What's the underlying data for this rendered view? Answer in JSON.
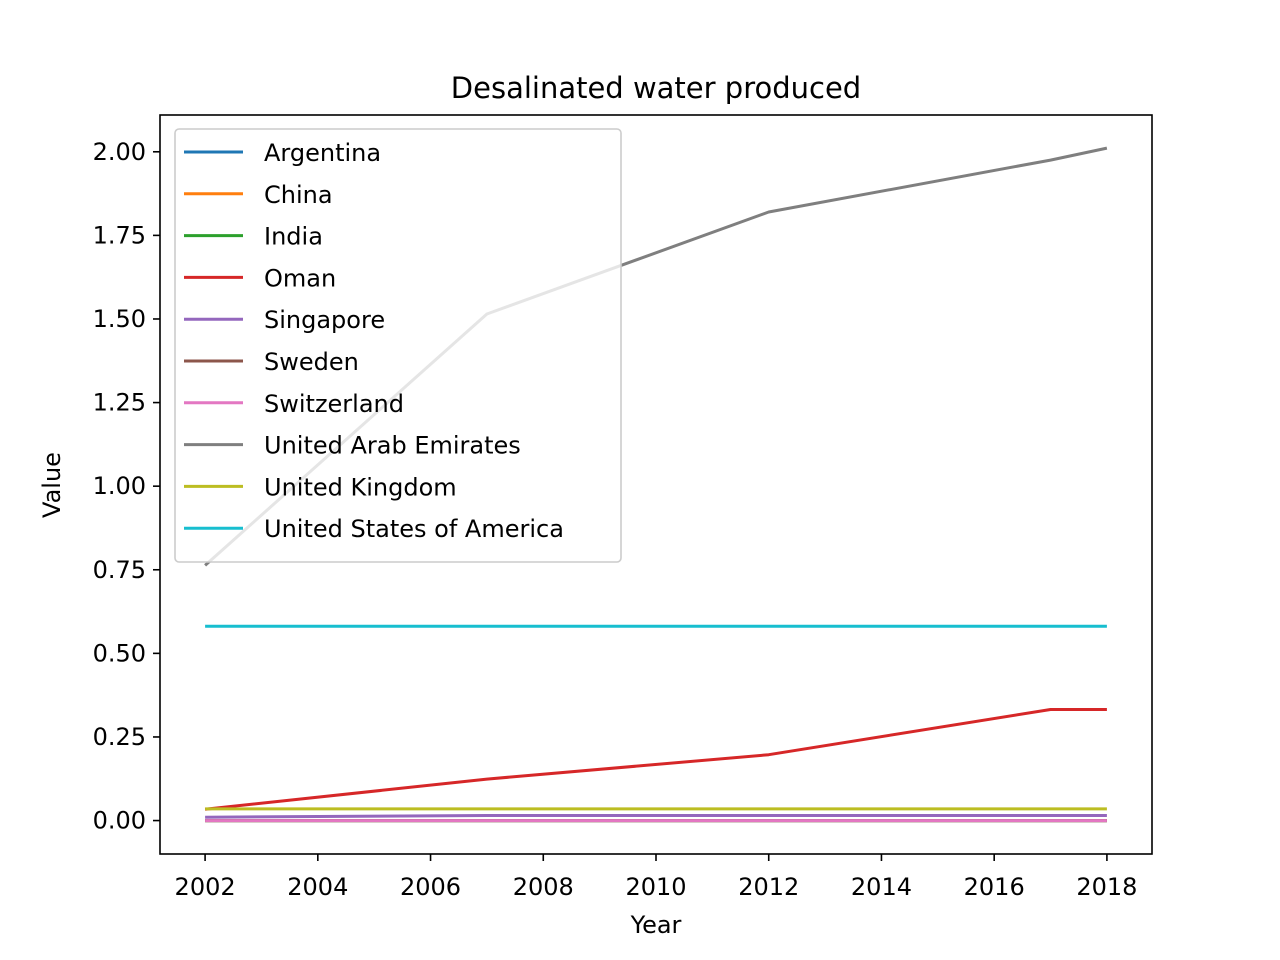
{
  "chart_data": {
    "type": "line",
    "title": "Desalinated water produced",
    "xlabel": "Year",
    "ylabel": "Value",
    "xlim": [
      2001.2,
      2018.8
    ],
    "ylim": [
      -0.1,
      2.11
    ],
    "xticks": [
      2002,
      2004,
      2006,
      2008,
      2010,
      2012,
      2014,
      2016,
      2018
    ],
    "yticks": [
      0.0,
      0.25,
      0.5,
      0.75,
      1.0,
      1.25,
      1.5,
      1.75,
      2.0
    ],
    "ytick_labels": [
      "0.00",
      "0.25",
      "0.50",
      "0.75",
      "1.00",
      "1.25",
      "1.50",
      "1.75",
      "2.00"
    ],
    "grid": false,
    "legend_position": "top-left",
    "series": [
      {
        "name": "Argentina",
        "color": "#1f77b4",
        "x": [
          2002,
          2007,
          2012,
          2017,
          2018
        ],
        "values": [
          0.0,
          0.0,
          0.0,
          0.0,
          0.0
        ]
      },
      {
        "name": "China",
        "color": "#ff7f0e",
        "x": [
          2002,
          2007,
          2012,
          2017,
          2018
        ],
        "values": [
          0.0,
          0.0,
          0.0,
          0.0,
          0.0
        ]
      },
      {
        "name": "India",
        "color": "#2ca02c",
        "x": [
          2002,
          2007,
          2012,
          2017,
          2018
        ],
        "values": [
          0.0,
          0.0,
          0.0,
          0.0,
          0.0
        ]
      },
      {
        "name": "Oman",
        "color": "#d62728",
        "x": [
          2002,
          2007,
          2012,
          2017,
          2018
        ],
        "values": [
          0.034,
          0.124,
          0.197,
          0.332,
          0.332
        ]
      },
      {
        "name": "Singapore",
        "color": "#9467bd",
        "x": [
          2002,
          2007,
          2012,
          2017,
          2018
        ],
        "values": [
          0.01,
          0.015,
          0.015,
          0.015,
          0.015
        ]
      },
      {
        "name": "Sweden",
        "color": "#8c564b",
        "x": [
          2002,
          2007,
          2012,
          2017,
          2018
        ],
        "values": [
          0.0,
          0.0,
          0.0,
          0.0,
          0.0
        ]
      },
      {
        "name": "Switzerland",
        "color": "#e377c2",
        "x": [
          2002,
          2007,
          2012,
          2017,
          2018
        ],
        "values": [
          0.0,
          0.0,
          0.0,
          0.0,
          0.0
        ]
      },
      {
        "name": "United Arab Emirates",
        "color": "#7f7f7f",
        "x": [
          2002,
          2007,
          2012,
          2017,
          2018
        ],
        "values": [
          0.763,
          1.515,
          1.82,
          1.975,
          2.011
        ]
      },
      {
        "name": "United Kingdom",
        "color": "#bcbd22",
        "x": [
          2002,
          2007,
          2012,
          2017,
          2018
        ],
        "values": [
          0.035,
          0.035,
          0.035,
          0.035,
          0.035
        ]
      },
      {
        "name": "United States of America",
        "color": "#17becf",
        "x": [
          2002,
          2007,
          2012,
          2017,
          2018
        ],
        "values": [
          0.581,
          0.581,
          0.581,
          0.581,
          0.581
        ]
      }
    ]
  }
}
